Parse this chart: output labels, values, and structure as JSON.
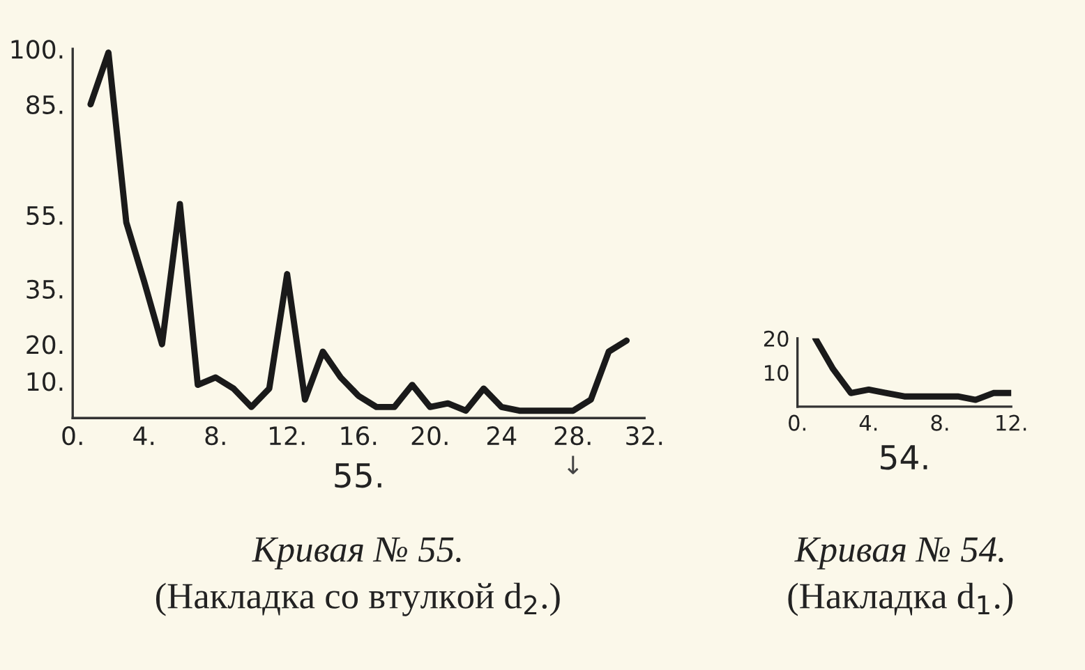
{
  "chart_data": [
    {
      "type": "line",
      "title": "Кривая № 55.",
      "subtitle": "(Накладка со втулкой d$_{2}$.)",
      "xlabel": "55.",
      "x": [
        1,
        2,
        3,
        4,
        5,
        6,
        7,
        8,
        9,
        10,
        11,
        12,
        13,
        14,
        15,
        16,
        17,
        18,
        19,
        20,
        21,
        22,
        23,
        24,
        25,
        26,
        27,
        28,
        29,
        30,
        31
      ],
      "series": [
        {
          "color": "#1a1a1a",
          "values": [
            85,
            99,
            53,
            37,
            20,
            58,
            9,
            11,
            8,
            3,
            8,
            39,
            5,
            18,
            11,
            6,
            3,
            3,
            9,
            3,
            4,
            2,
            8,
            3,
            2,
            2,
            2,
            2,
            5,
            18,
            21
          ]
        }
      ],
      "xlim": [
        0,
        32
      ],
      "ylim": [
        0,
        100
      ],
      "xticks": [
        {
          "value": 0,
          "label": "0."
        },
        {
          "value": 4,
          "label": "4."
        },
        {
          "value": 8,
          "label": "8."
        },
        {
          "value": 12,
          "label": "12."
        },
        {
          "value": 16,
          "label": "16."
        },
        {
          "value": 20,
          "label": "20."
        },
        {
          "value": 24,
          "label": "24"
        },
        {
          "value": 28,
          "label": "28."
        },
        {
          "value": 32,
          "label": "32."
        }
      ],
      "yticks": [
        {
          "value": 10,
          "label": "10."
        },
        {
          "value": 20,
          "label": "20."
        },
        {
          "value": 35,
          "label": "35."
        },
        {
          "value": 55,
          "label": "55."
        },
        {
          "value": 85,
          "label": "85."
        },
        {
          "value": 100,
          "label": "100."
        }
      ],
      "annotations": [
        "↓"
      ],
      "grid": false,
      "legend": false,
      "marker": "none",
      "line_style": "solid"
    },
    {
      "type": "line",
      "title": "Кривая № 54.",
      "subtitle": "(Накладка d$_{1}$.)",
      "xlabel": "54.",
      "x": [
        1,
        2,
        3,
        4,
        5,
        6,
        7,
        8,
        9,
        10,
        11,
        12
      ],
      "series": [
        {
          "color": "#1a1a1a",
          "values": [
            20,
            11,
            4,
            5,
            4,
            3,
            3,
            3,
            3,
            2,
            4,
            4
          ]
        }
      ],
      "xlim": [
        0,
        12
      ],
      "ylim": [
        0,
        20
      ],
      "xticks": [
        {
          "value": 0,
          "label": "0."
        },
        {
          "value": 4,
          "label": "4."
        },
        {
          "value": 8,
          "label": "8."
        },
        {
          "value": 12,
          "label": "12."
        }
      ],
      "yticks": [
        10,
        20
      ],
      "grid": false,
      "legend": false,
      "marker": "none",
      "line_style": "solid"
    }
  ]
}
